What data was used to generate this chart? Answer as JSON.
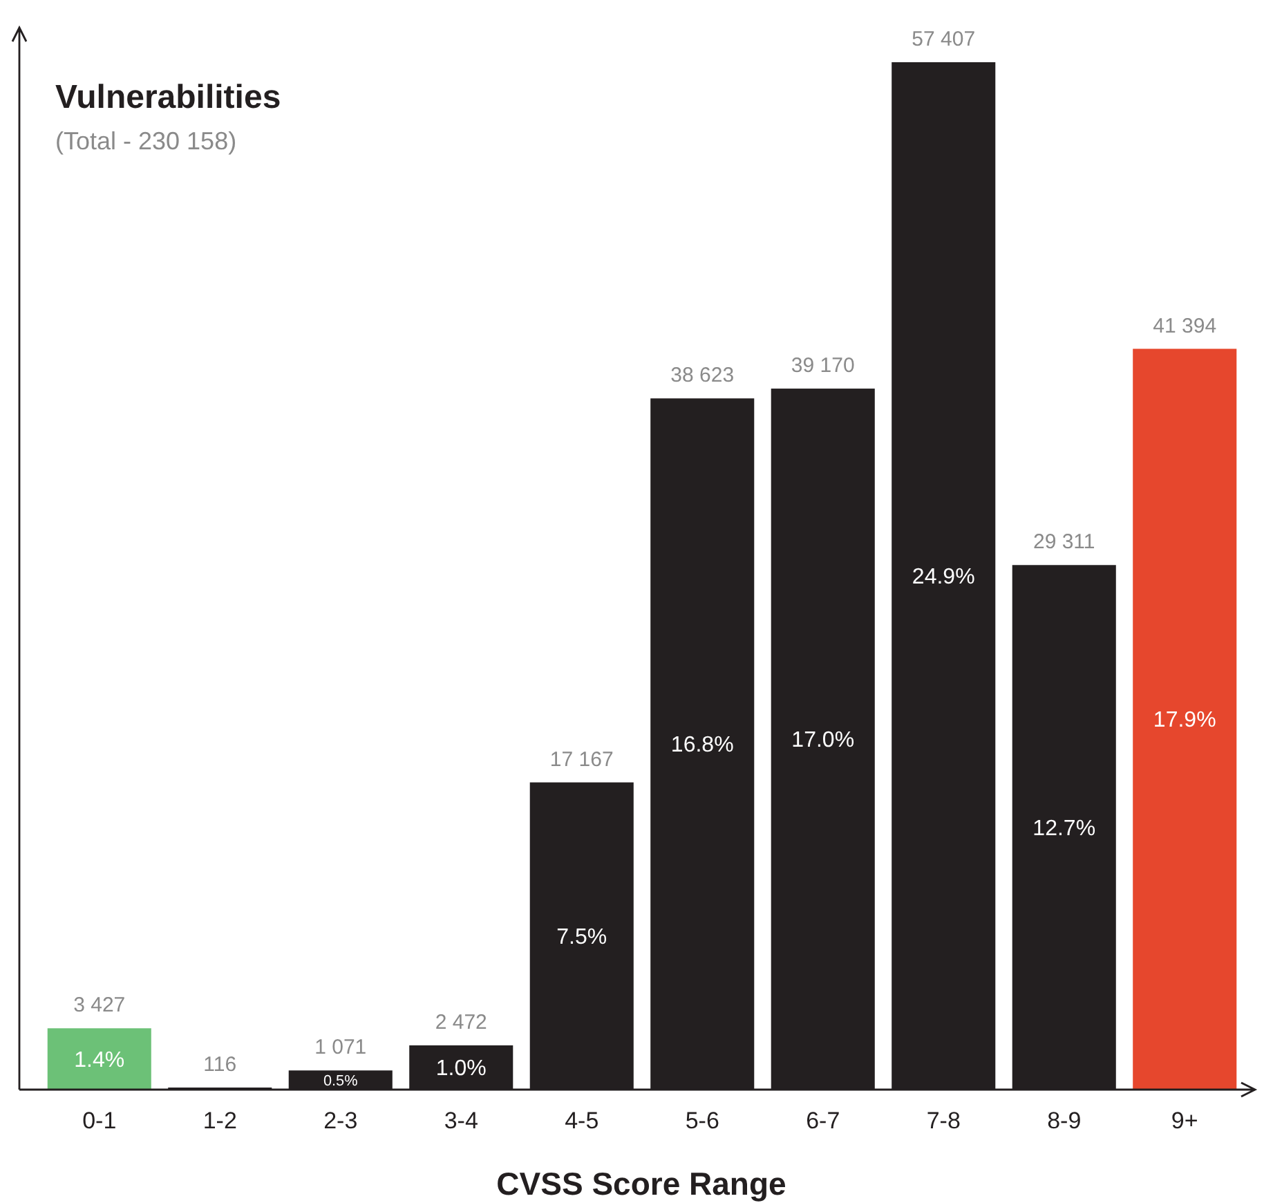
{
  "chart_data": {
    "type": "bar",
    "title": "Vulnerabilities",
    "subtitle": "(Total - 230 158)",
    "xlabel": "CVSS Score Range",
    "categories": [
      "0-1",
      "1-2",
      "2-3",
      "3-4",
      "4-5",
      "5-6",
      "6-7",
      "7-8",
      "8-9",
      "9+"
    ],
    "values": [
      3427,
      116,
      1071,
      2472,
      17167,
      38623,
      39170,
      57407,
      29311,
      41394
    ],
    "value_labels": [
      "3 427",
      "116",
      "1 071",
      "2 472",
      "17 167",
      "38 623",
      "39 170",
      "57 407",
      "29 311",
      "41 394"
    ],
    "colors": [
      "#6cc177",
      "#231f20",
      "#231f20",
      "#231f20",
      "#231f20",
      "#231f20",
      "#231f20",
      "#231f20",
      "#231f20",
      "#e6472d"
    ],
    "annotations": [
      "1.4%",
      "0.5%",
      "1.0%",
      "7.5%",
      "16.8%",
      "17.0%",
      "24.9%",
      "12.7%",
      "17.9%"
    ]
  }
}
